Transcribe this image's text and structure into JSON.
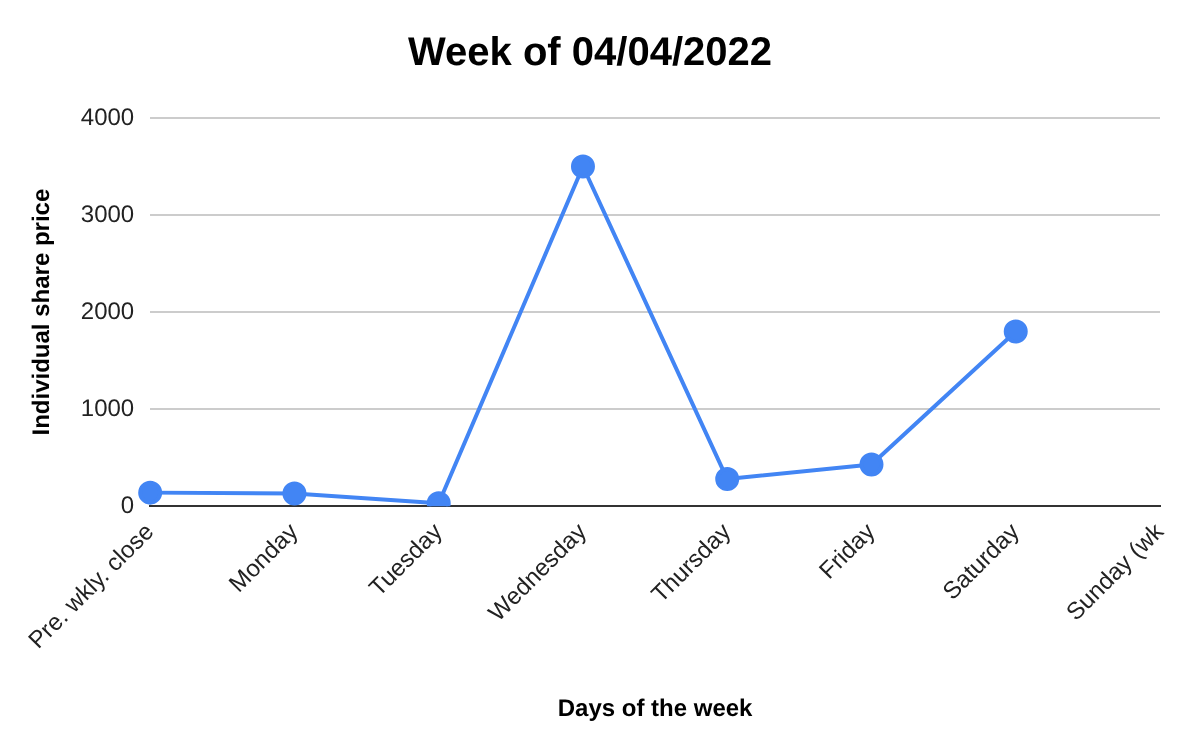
{
  "chart_data": {
    "type": "line",
    "title": "Week of 04/04/2022",
    "xlabel": "Days of the week",
    "ylabel": "Individual share price",
    "categories": [
      "Pre. wkly. close",
      "Monday",
      "Tuesday",
      "Wednesday",
      "Thursday",
      "Friday",
      "Saturday",
      "Sunday (wk"
    ],
    "series": [
      {
        "color": "#4285f4",
        "values": [
          140,
          130,
          30,
          3500,
          280,
          430,
          1800,
          null
        ]
      }
    ],
    "ylim": [
      0,
      4000
    ],
    "yticks": [
      0,
      1000,
      2000,
      3000,
      4000
    ],
    "grid": "y",
    "legend": false,
    "marker": "circle",
    "line_style": "solid"
  }
}
